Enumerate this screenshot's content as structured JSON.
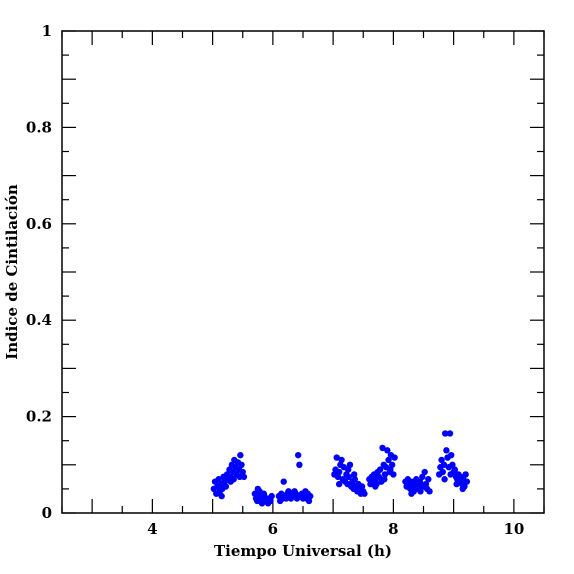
{
  "chart_data": {
    "type": "scatter",
    "title": "",
    "xlabel": "Tiempo Universal (h)",
    "ylabel": "Indice de Cintilación",
    "xlim": [
      2.5,
      10.5
    ],
    "ylim": [
      0,
      1
    ],
    "x_ticks": [
      4,
      6,
      8,
      10
    ],
    "x_tick_labels": [
      "4",
      "6",
      "8",
      "10"
    ],
    "y_ticks": [
      0,
      0.2,
      0.4,
      0.6,
      0.8,
      1
    ],
    "y_tick_labels": [
      "0",
      "0.2",
      "0.4",
      "0.6",
      "0.8",
      "1"
    ],
    "x_minor_step": 0.5,
    "y_minor_step": 0.05,
    "grid": false,
    "marker_color": "#0000ff",
    "series": [
      {
        "points": [
          [
            5.02,
            0.05
          ],
          [
            5.04,
            0.065
          ],
          [
            5.06,
            0.04
          ],
          [
            5.08,
            0.055
          ],
          [
            5.1,
            0.07
          ],
          [
            5.12,
            0.045
          ],
          [
            5.14,
            0.06
          ],
          [
            5.16,
            0.05
          ],
          [
            5.18,
            0.075
          ],
          [
            5.2,
            0.065
          ],
          [
            5.22,
            0.055
          ],
          [
            5.24,
            0.08
          ],
          [
            5.26,
            0.07
          ],
          [
            5.28,
            0.09
          ],
          [
            5.3,
            0.075
          ],
          [
            5.32,
            0.1
          ],
          [
            5.34,
            0.085
          ],
          [
            5.36,
            0.11
          ],
          [
            5.38,
            0.095
          ],
          [
            5.4,
            0.08
          ],
          [
            5.42,
            0.105
          ],
          [
            5.44,
            0.09
          ],
          [
            5.46,
            0.12
          ],
          [
            5.48,
            0.1
          ],
          [
            5.5,
            0.085
          ],
          [
            5.52,
            0.075
          ],
          [
            5.3,
            0.065
          ],
          [
            5.35,
            0.07
          ],
          [
            5.15,
            0.035
          ],
          [
            5.45,
            0.075
          ],
          [
            5.7,
            0.04
          ],
          [
            5.72,
            0.03
          ],
          [
            5.74,
            0.025
          ],
          [
            5.76,
            0.035
          ],
          [
            5.78,
            0.045
          ],
          [
            5.8,
            0.03
          ],
          [
            5.82,
            0.02
          ],
          [
            5.84,
            0.025
          ],
          [
            5.86,
            0.035
          ],
          [
            5.88,
            0.03
          ],
          [
            5.9,
            0.025
          ],
          [
            5.92,
            0.02
          ],
          [
            5.94,
            0.03
          ],
          [
            5.96,
            0.025
          ],
          [
            5.98,
            0.035
          ],
          [
            5.75,
            0.05
          ],
          [
            5.85,
            0.04
          ],
          [
            6.1,
            0.035
          ],
          [
            6.12,
            0.025
          ],
          [
            6.14,
            0.04
          ],
          [
            6.16,
            0.03
          ],
          [
            6.18,
            0.065
          ],
          [
            6.2,
            0.035
          ],
          [
            6.22,
            0.03
          ],
          [
            6.24,
            0.04
          ],
          [
            6.26,
            0.045
          ],
          [
            6.28,
            0.035
          ],
          [
            6.3,
            0.03
          ],
          [
            6.32,
            0.04
          ],
          [
            6.34,
            0.035
          ],
          [
            6.36,
            0.045
          ],
          [
            6.38,
            0.04
          ],
          [
            6.4,
            0.03
          ],
          [
            6.42,
            0.12
          ],
          [
            6.44,
            0.1
          ],
          [
            6.46,
            0.035
          ],
          [
            6.48,
            0.04
          ],
          [
            6.5,
            0.03
          ],
          [
            6.52,
            0.035
          ],
          [
            6.54,
            0.045
          ],
          [
            6.56,
            0.03
          ],
          [
            6.58,
            0.04
          ],
          [
            6.6,
            0.025
          ],
          [
            6.62,
            0.035
          ],
          [
            7.02,
            0.08
          ],
          [
            7.04,
            0.09
          ],
          [
            7.06,
            0.115
          ],
          [
            7.08,
            0.075
          ],
          [
            7.1,
            0.085
          ],
          [
            7.12,
            0.1
          ],
          [
            7.14,
            0.11
          ],
          [
            7.16,
            0.07
          ],
          [
            7.18,
            0.095
          ],
          [
            7.2,
            0.065
          ],
          [
            7.22,
            0.08
          ],
          [
            7.24,
            0.06
          ],
          [
            7.26,
            0.075
          ],
          [
            7.28,
            0.1
          ],
          [
            7.3,
            0.055
          ],
          [
            7.32,
            0.065
          ],
          [
            7.34,
            0.05
          ],
          [
            7.36,
            0.07
          ],
          [
            7.38,
            0.055
          ],
          [
            7.4,
            0.045
          ],
          [
            7.42,
            0.06
          ],
          [
            7.44,
            0.05
          ],
          [
            7.46,
            0.04
          ],
          [
            7.48,
            0.055
          ],
          [
            7.5,
            0.045
          ],
          [
            7.52,
            0.04
          ],
          [
            7.1,
            0.06
          ],
          [
            7.25,
            0.09
          ],
          [
            7.35,
            0.08
          ],
          [
            7.6,
            0.07
          ],
          [
            7.62,
            0.06
          ],
          [
            7.64,
            0.075
          ],
          [
            7.66,
            0.065
          ],
          [
            7.68,
            0.08
          ],
          [
            7.7,
            0.07
          ],
          [
            7.72,
            0.06
          ],
          [
            7.74,
            0.085
          ],
          [
            7.76,
            0.075
          ],
          [
            7.78,
            0.09
          ],
          [
            7.8,
            0.065
          ],
          [
            7.82,
            0.135
          ],
          [
            7.84,
            0.1
          ],
          [
            7.86,
            0.08
          ],
          [
            7.88,
            0.095
          ],
          [
            7.9,
            0.13
          ],
          [
            7.92,
            0.11
          ],
          [
            7.94,
            0.085
          ],
          [
            7.96,
            0.12
          ],
          [
            7.98,
            0.1
          ],
          [
            8.0,
            0.08
          ],
          [
            8.02,
            0.115
          ],
          [
            7.7,
            0.055
          ],
          [
            7.85,
            0.07
          ],
          [
            7.95,
            0.09
          ],
          [
            8.2,
            0.065
          ],
          [
            8.22,
            0.055
          ],
          [
            8.24,
            0.07
          ],
          [
            8.26,
            0.06
          ],
          [
            8.28,
            0.05
          ],
          [
            8.3,
            0.065
          ],
          [
            8.32,
            0.055
          ],
          [
            8.34,
            0.045
          ],
          [
            8.36,
            0.06
          ],
          [
            8.38,
            0.07
          ],
          [
            8.4,
            0.055
          ],
          [
            8.42,
            0.05
          ],
          [
            8.44,
            0.065
          ],
          [
            8.46,
            0.06
          ],
          [
            8.48,
            0.075
          ],
          [
            8.5,
            0.055
          ],
          [
            8.52,
            0.085
          ],
          [
            8.54,
            0.06
          ],
          [
            8.56,
            0.05
          ],
          [
            8.58,
            0.07
          ],
          [
            8.6,
            0.045
          ],
          [
            8.3,
            0.04
          ],
          [
            8.45,
            0.045
          ],
          [
            8.76,
            0.08
          ],
          [
            8.78,
            0.095
          ],
          [
            8.8,
            0.11
          ],
          [
            8.82,
            0.085
          ],
          [
            8.84,
            0.1
          ],
          [
            8.86,
            0.165
          ],
          [
            8.88,
            0.13
          ],
          [
            8.9,
            0.115
          ],
          [
            8.92,
            0.095
          ],
          [
            8.94,
            0.165
          ],
          [
            8.96,
            0.12
          ],
          [
            8.98,
            0.1
          ],
          [
            9.0,
            0.085
          ],
          [
            9.02,
            0.09
          ],
          [
            9.04,
            0.075
          ],
          [
            9.06,
            0.07
          ],
          [
            9.08,
            0.08
          ],
          [
            9.1,
            0.065
          ],
          [
            9.12,
            0.075
          ],
          [
            9.14,
            0.06
          ],
          [
            9.16,
            0.07
          ],
          [
            9.18,
            0.055
          ],
          [
            9.2,
            0.08
          ],
          [
            9.22,
            0.065
          ],
          [
            8.85,
            0.07
          ],
          [
            8.95,
            0.08
          ],
          [
            9.05,
            0.06
          ],
          [
            9.15,
            0.05
          ]
        ]
      }
    ]
  }
}
